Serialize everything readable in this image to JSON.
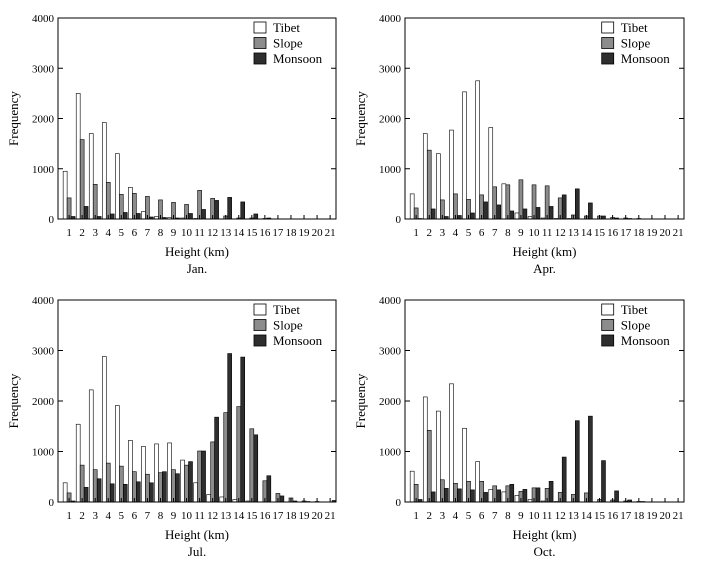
{
  "colors": {
    "Tibet": "#ffffff",
    "Slope": "#8c8c8c",
    "Monsoon": "#2e2e2e",
    "axis": "#000000"
  },
  "chart_data": [
    {
      "type": "bar",
      "panel_label": "Jan.",
      "xlabel": "Height (km)",
      "ylabel": "Frequency",
      "ylim": [
        0,
        4000
      ],
      "yticks": [
        0,
        1000,
        2000,
        3000,
        4000
      ],
      "categories": [
        "1",
        "2",
        "3",
        "4",
        "5",
        "6",
        "7",
        "8",
        "9",
        "10",
        "11",
        "12",
        "13",
        "14",
        "15",
        "16",
        "17",
        "18",
        "19",
        "20",
        "21"
      ],
      "legend_position": "top-right",
      "grid": false,
      "series": [
        {
          "name": "Tibet",
          "values": [
            950,
            2500,
            1700,
            1920,
            1300,
            630,
            150,
            50,
            30,
            20,
            10,
            0,
            0,
            0,
            0,
            0,
            0,
            0,
            0,
            0,
            0
          ]
        },
        {
          "name": "Slope",
          "values": [
            420,
            1580,
            690,
            730,
            490,
            510,
            450,
            380,
            330,
            290,
            570,
            410,
            60,
            20,
            20,
            10,
            0,
            0,
            0,
            0,
            0
          ]
        },
        {
          "name": "Monsoon",
          "values": [
            50,
            250,
            50,
            100,
            130,
            110,
            40,
            30,
            20,
            110,
            190,
            370,
            430,
            340,
            100,
            20,
            0,
            0,
            0,
            0,
            0
          ]
        }
      ]
    },
    {
      "type": "bar",
      "panel_label": "Apr.",
      "xlabel": "Height (km)",
      "ylabel": "Frequency",
      "ylim": [
        0,
        4000
      ],
      "yticks": [
        0,
        1000,
        2000,
        3000,
        4000
      ],
      "categories": [
        "1",
        "2",
        "3",
        "4",
        "5",
        "6",
        "7",
        "8",
        "9",
        "10",
        "11",
        "12",
        "13",
        "14",
        "15",
        "16",
        "17",
        "18",
        "19",
        "20",
        "21"
      ],
      "legend_position": "top-right",
      "grid": false,
      "series": [
        {
          "name": "Tibet",
          "values": [
            500,
            1700,
            1300,
            1770,
            2530,
            2750,
            1820,
            700,
            120,
            50,
            20,
            10,
            10,
            0,
            0,
            0,
            0,
            0,
            0,
            0,
            0
          ]
        },
        {
          "name": "Slope",
          "values": [
            220,
            1370,
            380,
            500,
            390,
            480,
            640,
            680,
            780,
            680,
            660,
            420,
            80,
            60,
            60,
            30,
            20,
            10,
            0,
            0,
            0
          ]
        },
        {
          "name": "Monsoon",
          "values": [
            10,
            200,
            50,
            70,
            120,
            340,
            280,
            160,
            200,
            230,
            250,
            480,
            600,
            320,
            60,
            20,
            10,
            0,
            0,
            0,
            0
          ]
        }
      ]
    },
    {
      "type": "bar",
      "panel_label": "Jul.",
      "xlabel": "Height (km)",
      "ylabel": "Frequency",
      "ylim": [
        0,
        4000
      ],
      "yticks": [
        0,
        1000,
        2000,
        3000,
        4000
      ],
      "categories": [
        "1",
        "2",
        "3",
        "4",
        "5",
        "6",
        "7",
        "8",
        "9",
        "10",
        "11",
        "12",
        "13",
        "14",
        "15",
        "16",
        "17",
        "18",
        "19",
        "20",
        "21"
      ],
      "legend_position": "top-right",
      "grid": false,
      "series": [
        {
          "name": "Tibet",
          "values": [
            380,
            1540,
            2220,
            2880,
            1910,
            1220,
            1100,
            1150,
            1170,
            830,
            380,
            150,
            100,
            50,
            20,
            0,
            0,
            0,
            0,
            0,
            0
          ]
        },
        {
          "name": "Slope",
          "values": [
            180,
            730,
            640,
            770,
            710,
            600,
            550,
            580,
            640,
            730,
            1010,
            1190,
            1770,
            1890,
            1450,
            420,
            170,
            80,
            20,
            10,
            0
          ]
        },
        {
          "name": "Monsoon",
          "values": [
            20,
            290,
            460,
            360,
            350,
            400,
            380,
            600,
            560,
            800,
            1010,
            1680,
            2940,
            2870,
            1330,
            520,
            120,
            20,
            10,
            0,
            30
          ]
        }
      ]
    },
    {
      "type": "bar",
      "panel_label": "Oct.",
      "xlabel": "Height (km)",
      "ylabel": "Frequency",
      "ylim": [
        0,
        4000
      ],
      "yticks": [
        0,
        1000,
        2000,
        3000,
        4000
      ],
      "categories": [
        "1",
        "2",
        "3",
        "4",
        "5",
        "6",
        "7",
        "8",
        "9",
        "10",
        "11",
        "12",
        "13",
        "14",
        "15",
        "16",
        "17",
        "18",
        "19",
        "20",
        "21"
      ],
      "legend_position": "top-right",
      "grid": false,
      "series": [
        {
          "name": "Tibet",
          "values": [
            610,
            2080,
            1800,
            2340,
            1460,
            800,
            250,
            200,
            130,
            50,
            20,
            10,
            0,
            0,
            0,
            0,
            0,
            0,
            0,
            0,
            0
          ]
        },
        {
          "name": "Slope",
          "values": [
            350,
            1420,
            440,
            370,
            410,
            410,
            320,
            320,
            210,
            280,
            270,
            190,
            150,
            180,
            50,
            40,
            20,
            10,
            0,
            0,
            0
          ]
        },
        {
          "name": "Monsoon",
          "values": [
            50,
            200,
            270,
            260,
            240,
            190,
            240,
            350,
            250,
            280,
            410,
            890,
            1610,
            1700,
            820,
            220,
            40,
            10,
            0,
            0,
            0
          ]
        }
      ]
    }
  ]
}
